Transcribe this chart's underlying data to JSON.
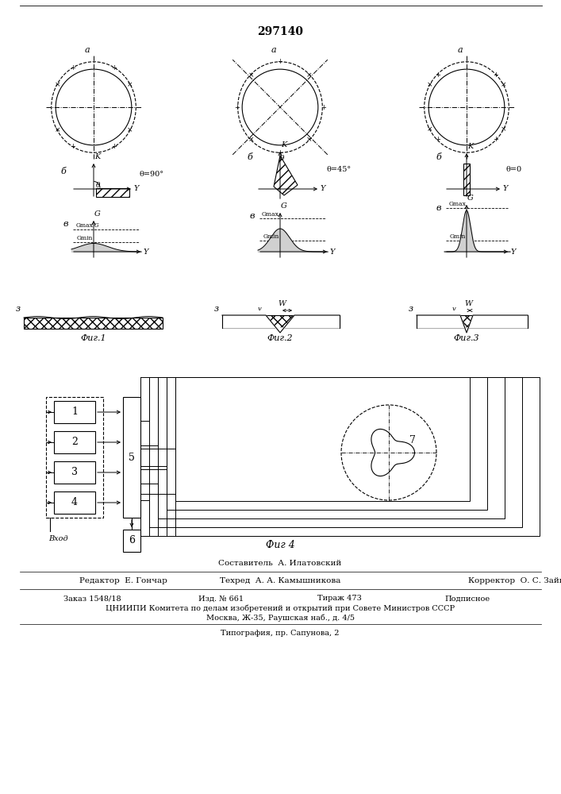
{
  "title": "297140",
  "bg_color": "#ffffff",
  "fig1_label": "Фиг.1",
  "fig2_label": "Фиг.2",
  "fig3_label": "Фиг.3",
  "fig4_label": "Фиг 4",
  "footer_lines": [
    "Составитель  А. Илатовский",
    "Редактор  Е. Гончар",
    "Техред  А. А. Камышникова",
    "Корректор  О. С. Зайцева",
    "Заказ 1548/18",
    "Изд. № 661",
    "Тираж 473",
    "Подписное",
    "ЦНИИПИ Комитета по делам изобретений и открытий при Совете Министров СССР",
    "Москва, Ж-35, Раушская наб., д. 4/5",
    "Типография, пр. Сапунова, 2"
  ]
}
